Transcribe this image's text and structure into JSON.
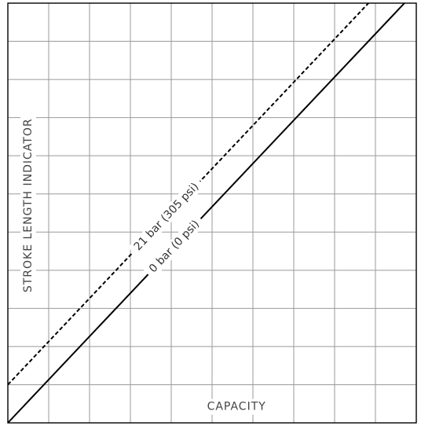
{
  "chart_data": {
    "type": "line",
    "title": "",
    "xlabel": "CAPACITY",
    "ylabel": "STROKE LENGTH INDICATOR",
    "xlim": [
      0,
      10
    ],
    "ylim": [
      0,
      11
    ],
    "grid": true,
    "series": [
      {
        "name": "21 bar  (305 psi)",
        "style": "dashed",
        "color": "#000000",
        "x": [
          0,
          8.83
        ],
        "y": [
          1,
          11
        ]
      },
      {
        "name": "0 bar  (0 psi)",
        "style": "solid",
        "color": "#000000",
        "x": [
          0,
          9.71
        ],
        "y": [
          0,
          11
        ]
      }
    ]
  }
}
